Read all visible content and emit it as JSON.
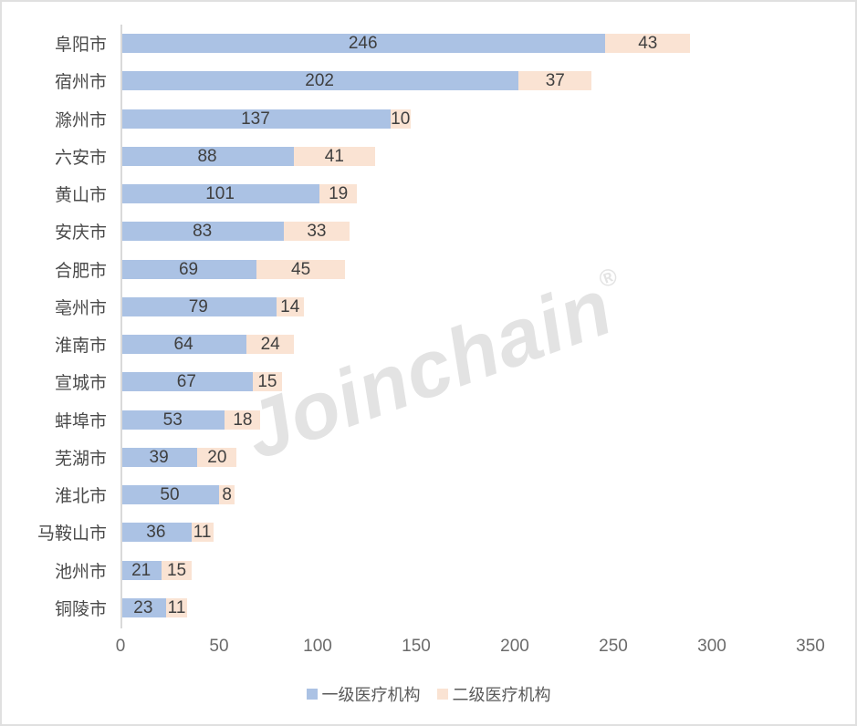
{
  "colors": {
    "series1": "#abc2e4",
    "series2": "#fae3d3",
    "bar_label": "#3f3f3f",
    "axis_text": "#6b6b6b",
    "axis_line": "#d9d9d9",
    "watermark": "#e3e3e3"
  },
  "watermark": {
    "text": "Joinchain",
    "reg": "®"
  },
  "legend": {
    "items": [
      {
        "label": "一级医疗机构",
        "color": "#abc2e4"
      },
      {
        "label": "二级医疗机构",
        "color": "#fae3d3"
      }
    ]
  },
  "chart_data": {
    "type": "bar",
    "orientation": "horizontal_stacked",
    "title": "",
    "xlabel": "",
    "ylabel": "",
    "grid": false,
    "legend_position": "bottom",
    "xlim": [
      0,
      350
    ],
    "x_ticks": [
      0,
      50,
      100,
      150,
      200,
      250,
      300,
      350
    ],
    "categories": [
      "阜阳市",
      "宿州市",
      "滁州市",
      "六安市",
      "黄山市",
      "安庆市",
      "合肥市",
      "亳州市",
      "淮南市",
      "宣城市",
      "蚌埠市",
      "芜湖市",
      "淮北市",
      "马鞍山市",
      "池州市",
      "铜陵市"
    ],
    "series": [
      {
        "name": "一级医疗机构",
        "color": "#abc2e4",
        "values": [
          246,
          202,
          137,
          88,
          101,
          83,
          69,
          79,
          64,
          67,
          53,
          39,
          50,
          36,
          21,
          23
        ]
      },
      {
        "name": "二级医疗机构",
        "color": "#fae3d3",
        "values": [
          43,
          37,
          10,
          41,
          19,
          33,
          45,
          14,
          24,
          15,
          18,
          20,
          8,
          11,
          15,
          11
        ]
      }
    ]
  }
}
